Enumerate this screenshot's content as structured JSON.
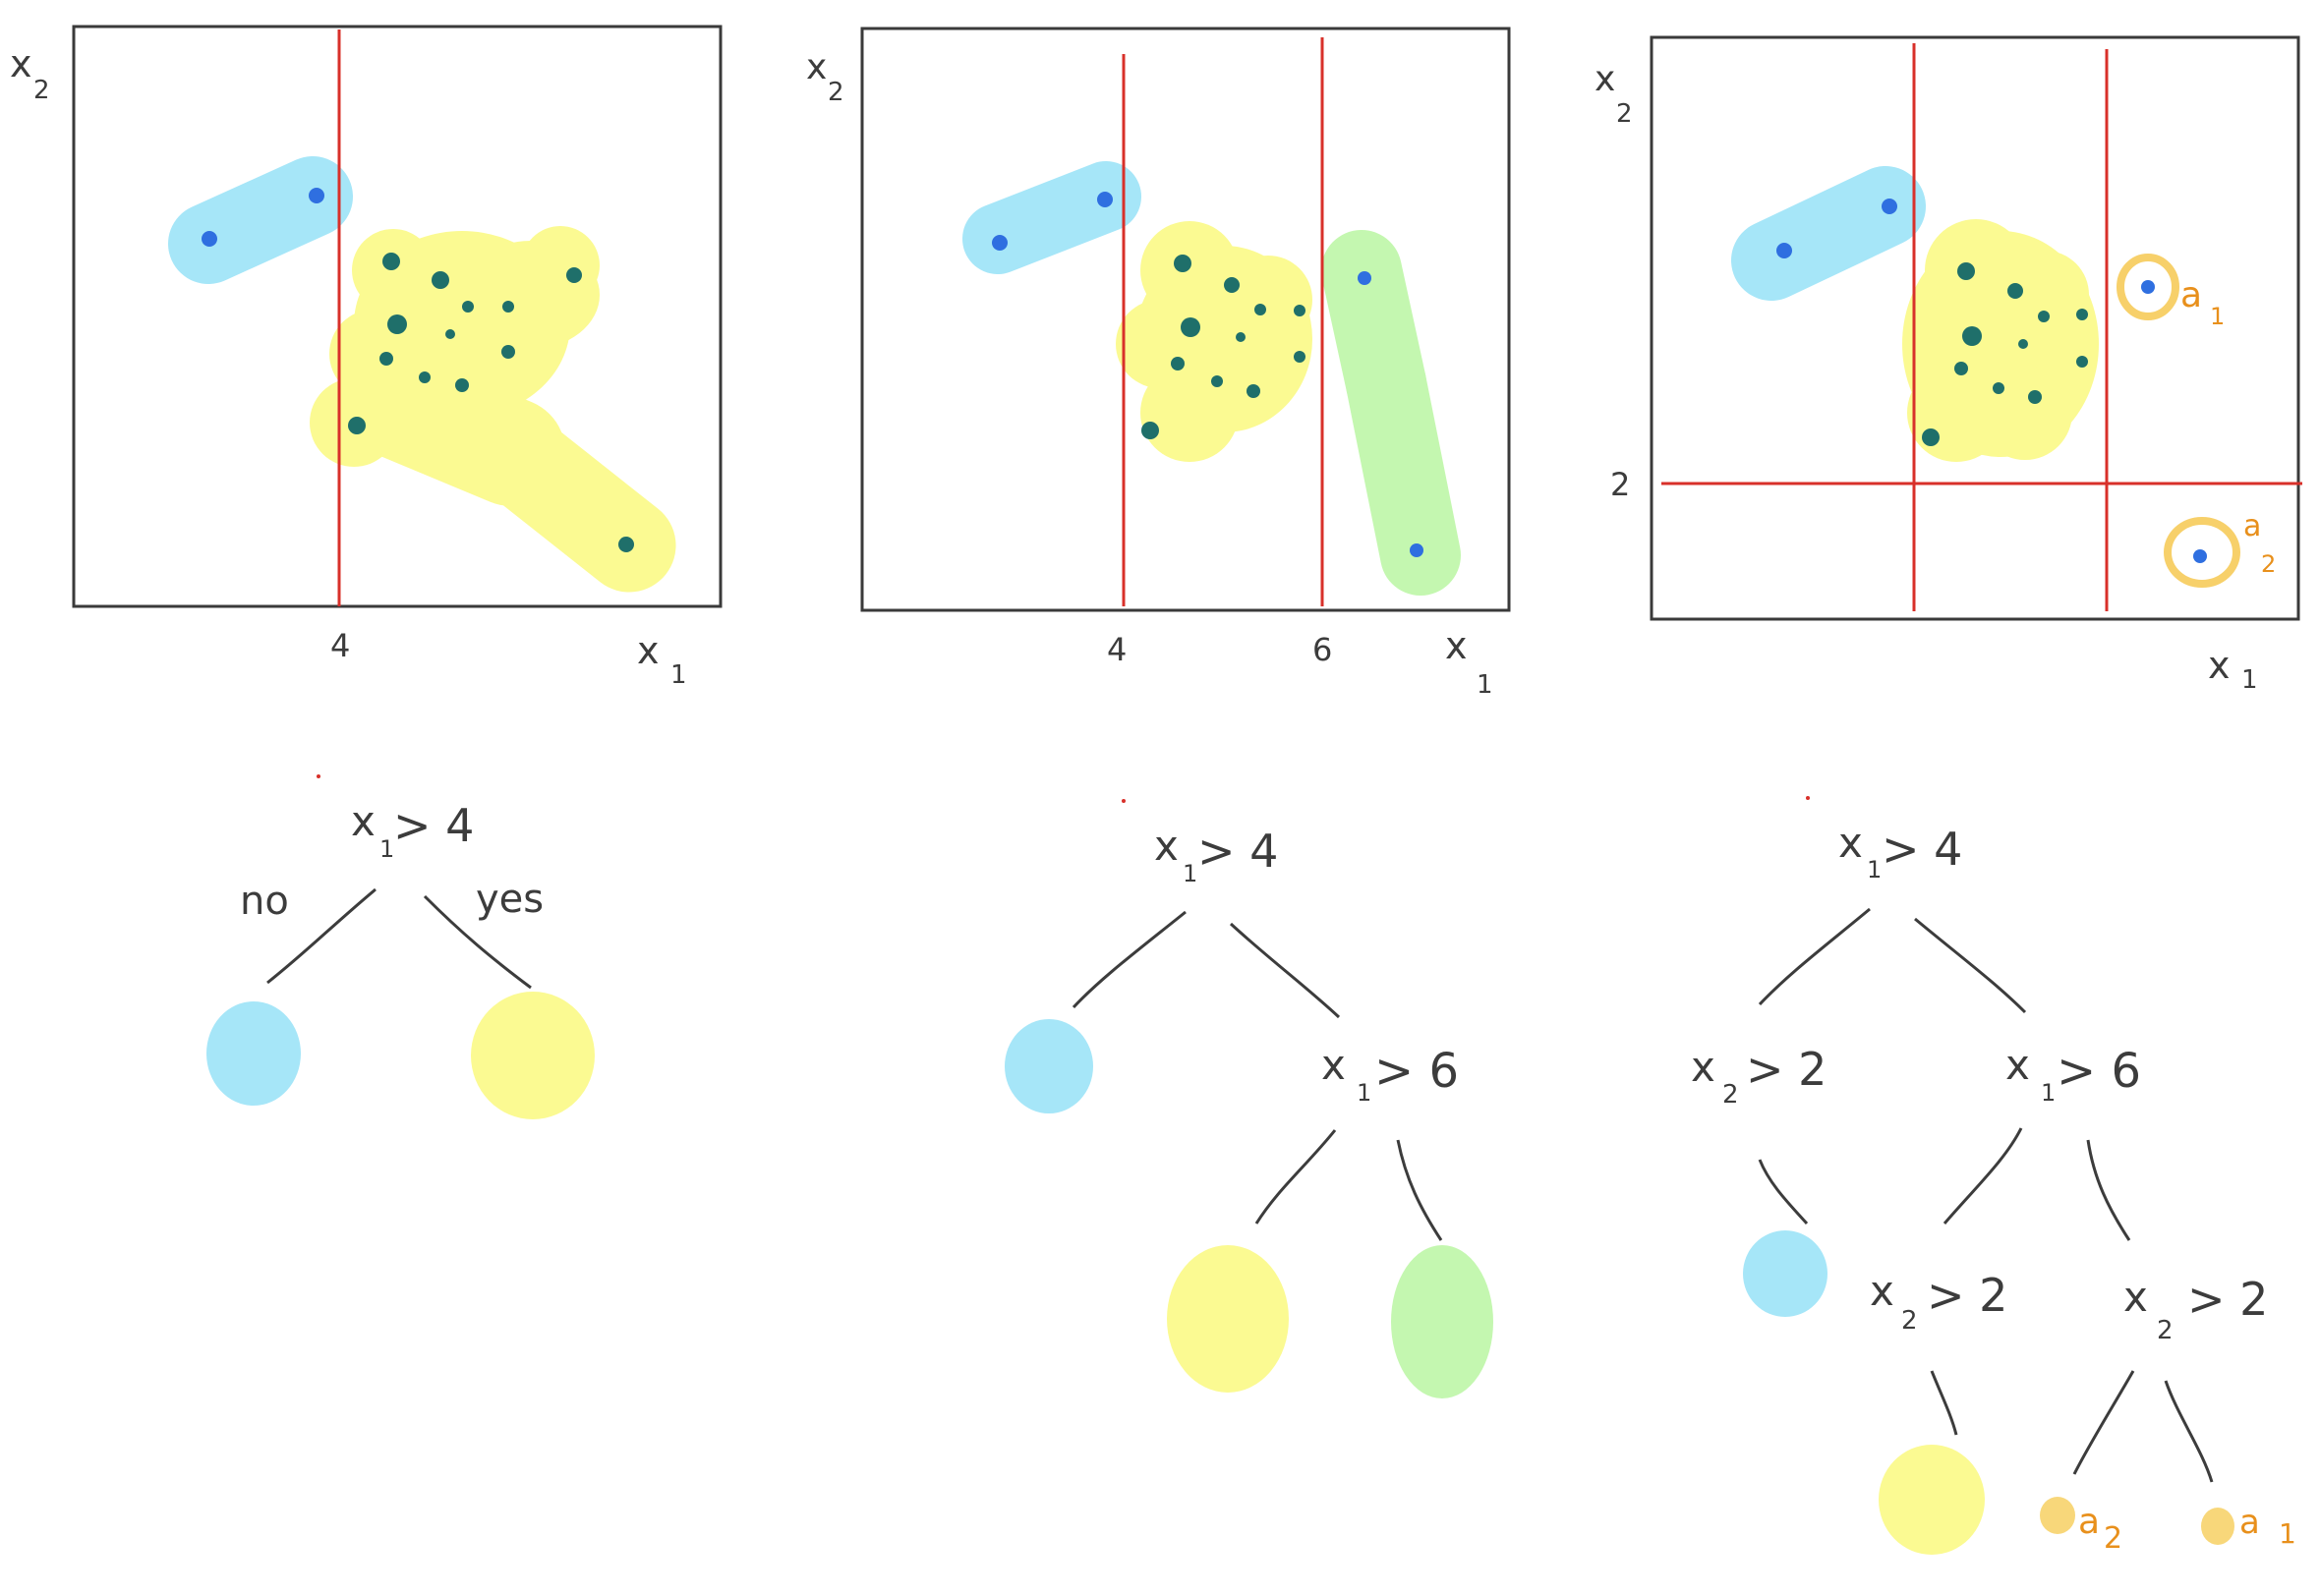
{
  "colors": {
    "frame": "#3a3a3a",
    "split": "#d8302a",
    "ink": "#3c3c3c",
    "blue_blob": "#a6e6f8",
    "yellow_blob": "#fbfa92",
    "green_blob": "#c4f7b0",
    "blue_point": "#2f6fe0",
    "teal_point": "#1f6f6a",
    "orange": "#e8901c",
    "orange_ring": "#f7d06a",
    "orange_leaf": "#f8d77a"
  },
  "panel1": {
    "axis_x": "x",
    "axis_x_sub": "1",
    "axis_y": "x",
    "axis_y_sub": "2",
    "tick_4": "4"
  },
  "panel2": {
    "axis_x": "x",
    "axis_x_sub": "1",
    "axis_y": "x",
    "axis_y_sub": "2",
    "tick_4": "4",
    "tick_6": "6"
  },
  "panel3": {
    "axis_x": "x",
    "axis_x_sub": "1",
    "axis_y": "x",
    "axis_y_sub": "2",
    "tick_2": "2",
    "point_a1": "a",
    "point_a1_sub": "1",
    "point_a2": "a",
    "point_a2_sub": "2"
  },
  "tree1": {
    "root": "x",
    "root_sub": "1",
    "root_rest": "> 4",
    "edge_no": "no",
    "edge_yes": "yes"
  },
  "tree2": {
    "root": "x",
    "root_sub": "1",
    "root_rest": "> 4",
    "node_b": "x",
    "node_b_sub": "1",
    "node_b_rest": "> 6"
  },
  "tree3": {
    "root": "x",
    "root_sub": "1",
    "root_rest": "> 4",
    "node_left": "x",
    "node_left_sub": "2",
    "node_left_rest": "> 2",
    "node_right": "x",
    "node_right_sub": "1",
    "node_right_rest": "> 6",
    "node_ll": "x",
    "node_ll_sub": "2",
    "node_ll_rest": "> 2",
    "node_rr": "x",
    "node_rr_sub": "2",
    "node_rr_rest": "> 2",
    "leaf_a2": "a",
    "leaf_a2_sub": "2",
    "leaf_a1": "a",
    "leaf_a1_sub": "1"
  }
}
